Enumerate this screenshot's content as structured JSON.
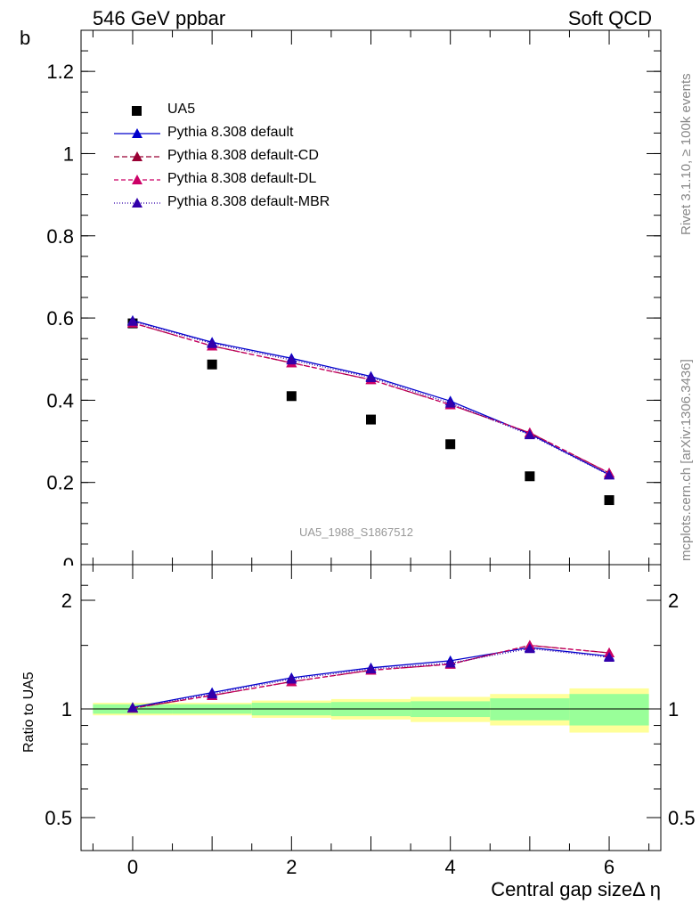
{
  "header": {
    "left": "546 GeV ppbar",
    "right": "Soft QCD"
  },
  "side": {
    "rivet": "Rivet 3.1.10, ≥ 100k events",
    "mcplots": "mcplots.cern.ch [arXiv:1306.3436]"
  },
  "watermark": "UA5_1988_S1867512",
  "chart_data": {
    "type": "scatter",
    "x": [
      0,
      1,
      2,
      3,
      4,
      5,
      6
    ],
    "xlabel": "Central gap sizeΔ η",
    "ylabel": "b",
    "xlim": [
      -0.65,
      6.65
    ],
    "ylim": [
      0,
      1.3
    ],
    "ratio_ylabel": "Ratio to UA5",
    "ratio_ylim": [
      0.4,
      2.4
    ],
    "x_ticks": [
      0,
      2,
      4,
      6
    ],
    "y_ticks": [
      0.2,
      0.4,
      0.6,
      0.8,
      1,
      1.2
    ],
    "y_ticks_cut": "0",
    "ratio_y_ticks": [
      0.5,
      1,
      2
    ],
    "data": {
      "name": "UA5",
      "values": [
        0.587,
        0.487,
        0.41,
        0.353,
        0.293,
        0.215,
        0.157
      ],
      "band_inner": [
        0.03,
        0.03,
        0.04,
        0.045,
        0.05,
        0.07,
        0.1
      ],
      "band_outer": [
        0.04,
        0.04,
        0.055,
        0.065,
        0.08,
        0.1,
        0.14
      ]
    },
    "series": [
      {
        "name": "Pythia 8.308 default",
        "color": "#0000cc",
        "dash": "",
        "values": [
          0.594,
          0.541,
          0.502,
          0.458,
          0.398,
          0.318,
          0.219
        ]
      },
      {
        "name": "Pythia 8.308 default-CD",
        "color": "#990033",
        "dash": "6,3",
        "values": [
          0.588,
          0.532,
          0.491,
          0.45,
          0.389,
          0.321,
          0.223
        ]
      },
      {
        "name": "Pythia 8.308 default-DL",
        "color": "#cc0066",
        "dash": "5,3",
        "values": [
          0.588,
          0.532,
          0.491,
          0.45,
          0.389,
          0.321,
          0.223
        ]
      },
      {
        "name": "Pythia 8.308 default-MBR",
        "color": "#3300aa",
        "dash": "1,2",
        "values": [
          0.592,
          0.538,
          0.498,
          0.455,
          0.393,
          0.316,
          0.218
        ]
      }
    ],
    "ratio": {
      "series_values": [
        [
          1.01,
          1.11,
          1.22,
          1.3,
          1.36,
          1.48,
          1.4
        ],
        [
          1.005,
          1.09,
          1.19,
          1.28,
          1.33,
          1.5,
          1.43
        ],
        [
          1.005,
          1.09,
          1.19,
          1.28,
          1.33,
          1.5,
          1.43
        ],
        [
          1.008,
          1.1,
          1.21,
          1.29,
          1.34,
          1.47,
          1.39
        ]
      ]
    }
  }
}
